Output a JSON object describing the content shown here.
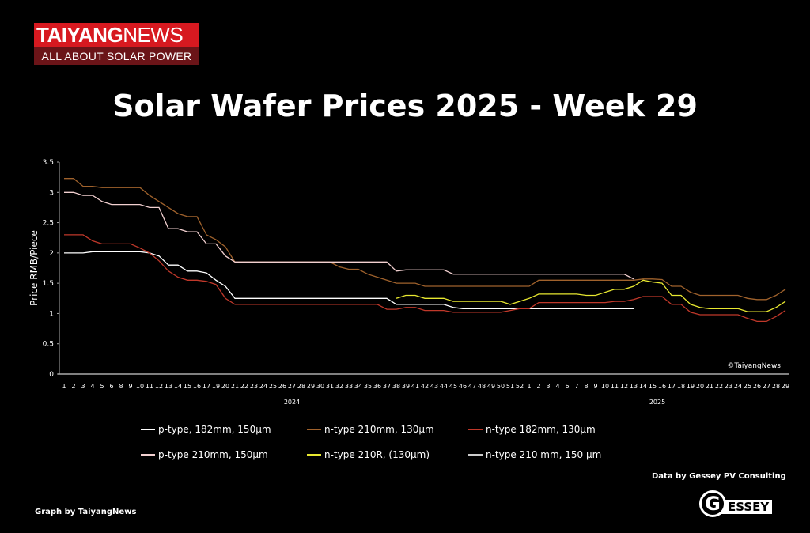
{
  "logo": {
    "brand_bold": "TAIYANG",
    "brand_light": "NEWS",
    "tagline": "ALL ABOUT SOLAR POWER"
  },
  "credits": {
    "graph_by": "Graph by TaiyangNews",
    "data_by": "Data by Gessey PV Consulting",
    "gessey_logo": "GESSEY"
  },
  "chart_data": {
    "type": "line",
    "title": "Solar Wafer Prices 2025 - Week 29",
    "ylabel": "Price RMB/Piece",
    "xlabel": "",
    "ylim": [
      0,
      3.5
    ],
    "yticks": [
      "0",
      "0.5",
      "1",
      "1.5",
      "2",
      "2.5",
      "3",
      "3.5"
    ],
    "watermark": "©TaiyangNews",
    "grid": false,
    "legend_position": "bottom",
    "year_groups": [
      {
        "year": "2024",
        "weeks": [
          "1",
          "2",
          "3",
          "4",
          "5",
          "6",
          "8",
          "9",
          "10",
          "11",
          "12",
          "13",
          "14",
          "15",
          "16",
          "17",
          "19",
          "20",
          "21",
          "22",
          "23",
          "24",
          "25",
          "26",
          "27",
          "28",
          "29",
          "30",
          "31",
          "32",
          "33",
          "34",
          "35",
          "36",
          "37",
          "38",
          "39",
          "41",
          "42",
          "43",
          "44",
          "45",
          "46",
          "47",
          "48",
          "49",
          "50",
          "51",
          "52"
        ]
      },
      {
        "year": "2025",
        "weeks": [
          "1",
          "2",
          "3",
          "4",
          "6",
          "7",
          "8",
          "9",
          "10",
          "11",
          "12",
          "13",
          "14",
          "15",
          "16",
          "17",
          "18",
          "19",
          "20",
          "21",
          "22",
          "23",
          "24",
          "25",
          "26",
          "27",
          "28",
          "29"
        ]
      }
    ],
    "series": [
      {
        "name": "p-type, 182mm, 150µm",
        "color": "#ffffff",
        "values": [
          2.0,
          2.0,
          2.0,
          2.02,
          2.02,
          2.02,
          2.02,
          2.02,
          2.02,
          2.0,
          1.95,
          1.8,
          1.8,
          1.7,
          1.7,
          1.67,
          1.55,
          1.45,
          1.25,
          1.25,
          1.25,
          1.25,
          1.25,
          1.25,
          1.25,
          1.25,
          1.25,
          1.25,
          1.25,
          1.25,
          1.25,
          1.25,
          1.25,
          1.25,
          1.25,
          1.15,
          1.15,
          1.15,
          1.15,
          1.15,
          1.15,
          1.1,
          1.08,
          1.08,
          1.08,
          1.08,
          1.08,
          1.08,
          1.08,
          1.08,
          1.08,
          1.08,
          1.08,
          1.08,
          1.08,
          1.08,
          1.08,
          1.08,
          1.08,
          1.08,
          1.08,
          null,
          null,
          null,
          null,
          null,
          null,
          null,
          null,
          null,
          null,
          null,
          null,
          null,
          null,
          null,
          null
        ]
      },
      {
        "name": "n-type 210mm, 130µm",
        "color": "#a0622c",
        "values": [
          3.23,
          3.23,
          3.1,
          3.1,
          3.08,
          3.08,
          3.08,
          3.08,
          3.08,
          2.95,
          2.85,
          2.75,
          2.65,
          2.6,
          2.6,
          2.3,
          2.22,
          2.1,
          1.85,
          1.85,
          1.85,
          1.85,
          1.85,
          1.85,
          1.85,
          1.85,
          1.85,
          1.85,
          1.85,
          1.77,
          1.73,
          1.73,
          1.65,
          1.6,
          1.55,
          1.5,
          1.5,
          1.5,
          1.45,
          1.45,
          1.45,
          1.45,
          1.45,
          1.45,
          1.45,
          1.45,
          1.45,
          1.45,
          1.45,
          1.45,
          1.55,
          1.55,
          1.55,
          1.55,
          1.55,
          1.55,
          1.55,
          1.55,
          1.55,
          1.55,
          1.55,
          1.57,
          1.57,
          1.56,
          1.45,
          1.45,
          1.35,
          1.3,
          1.3,
          1.3,
          1.3,
          1.3,
          1.25,
          1.23,
          1.23,
          1.3,
          1.4
        ]
      },
      {
        "name": "n-type 182mm, 130µm",
        "color": "#c0382a",
        "values": [
          2.3,
          2.3,
          2.3,
          2.2,
          2.15,
          2.15,
          2.15,
          2.15,
          2.08,
          2.0,
          1.87,
          1.7,
          1.6,
          1.55,
          1.55,
          1.53,
          1.48,
          1.25,
          1.15,
          1.15,
          1.15,
          1.15,
          1.15,
          1.15,
          1.15,
          1.15,
          1.15,
          1.15,
          1.15,
          1.15,
          1.15,
          1.15,
          1.15,
          1.15,
          1.07,
          1.07,
          1.1,
          1.1,
          1.05,
          1.05,
          1.05,
          1.02,
          1.02,
          1.02,
          1.02,
          1.02,
          1.02,
          1.05,
          1.08,
          1.08,
          1.18,
          1.18,
          1.18,
          1.18,
          1.18,
          1.18,
          1.18,
          1.18,
          1.2,
          1.2,
          1.23,
          1.28,
          1.28,
          1.28,
          1.15,
          1.15,
          1.02,
          0.98,
          0.98,
          0.98,
          0.98,
          0.98,
          0.92,
          0.87,
          0.87,
          0.95,
          1.05
        ]
      },
      {
        "name": "p-type 210mm, 150µm",
        "color": "#f2d0d0",
        "values": [
          3.0,
          3.0,
          2.95,
          2.95,
          2.85,
          2.8,
          2.8,
          2.8,
          2.8,
          2.75,
          2.75,
          2.4,
          2.4,
          2.35,
          2.35,
          2.15,
          2.15,
          1.95,
          1.85,
          1.85,
          1.85,
          1.85,
          1.85,
          1.85,
          1.85,
          1.85,
          1.85,
          1.85,
          1.85,
          1.85,
          1.85,
          1.85,
          1.85,
          1.85,
          1.85,
          1.7,
          1.72,
          1.72,
          1.72,
          1.72,
          1.72,
          1.65,
          1.65,
          1.65,
          1.65,
          1.65,
          1.65,
          1.65,
          1.65,
          1.65,
          1.65,
          1.65,
          1.65,
          1.65,
          1.65,
          1.65,
          1.65,
          1.65,
          1.65,
          1.65,
          1.57,
          null,
          null,
          null,
          null,
          null,
          null,
          null,
          null,
          null,
          null,
          null,
          null,
          null,
          null,
          null,
          null
        ]
      },
      {
        "name": "n-type 210R, (130µm)",
        "color": "#e8e830",
        "values": [
          null,
          null,
          null,
          null,
          null,
          null,
          null,
          null,
          null,
          null,
          null,
          null,
          null,
          null,
          null,
          null,
          null,
          null,
          null,
          null,
          null,
          null,
          null,
          null,
          null,
          null,
          null,
          null,
          null,
          null,
          null,
          null,
          null,
          null,
          null,
          1.25,
          1.3,
          1.3,
          1.25,
          1.25,
          1.25,
          1.2,
          1.2,
          1.2,
          1.2,
          1.2,
          1.2,
          1.15,
          1.2,
          1.25,
          1.32,
          1.32,
          1.32,
          1.32,
          1.32,
          1.3,
          1.3,
          1.35,
          1.4,
          1.4,
          1.45,
          1.55,
          1.52,
          1.5,
          1.3,
          1.3,
          1.15,
          1.1,
          1.08,
          1.08,
          1.08,
          1.08,
          1.03,
          1.03,
          1.03,
          1.1,
          1.2
        ]
      },
      {
        "name": "n-type 210 mm, 150 µm",
        "color": "#cccccc",
        "values": []
      }
    ]
  }
}
